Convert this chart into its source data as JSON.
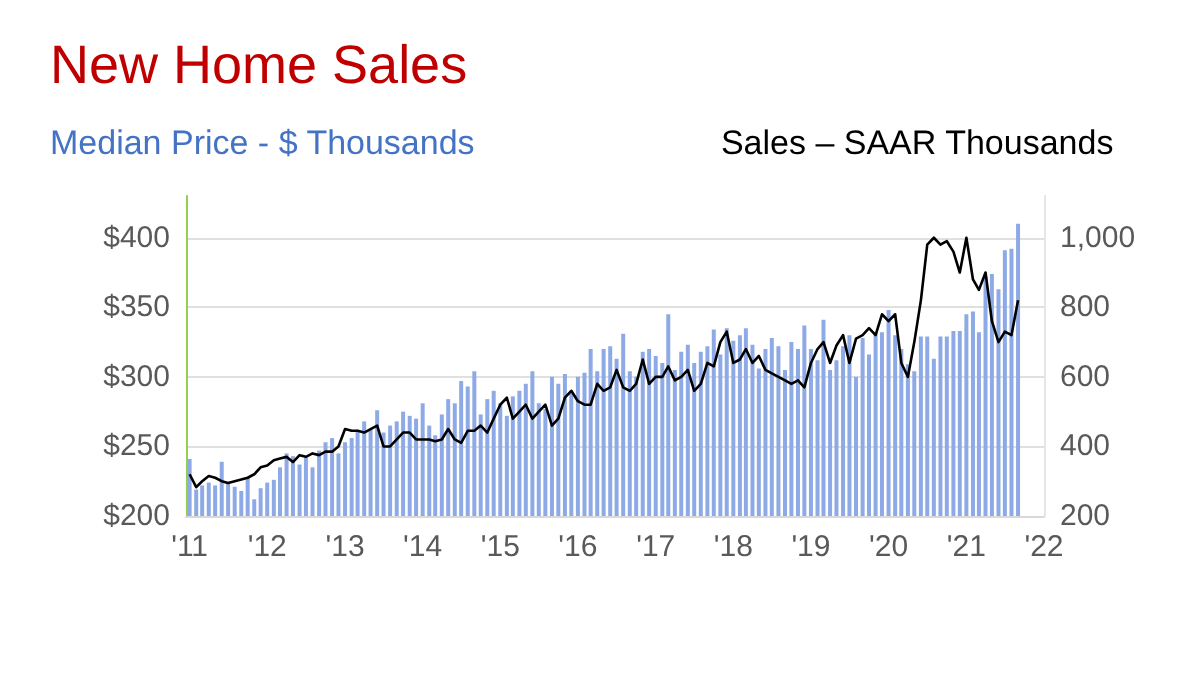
{
  "chart_data": {
    "type": "bar",
    "title": "New Home Sales",
    "ylabel": "Median Price - $ Thousands",
    "y2label": "Sales – SAAR Thousands",
    "x": [
      "2011-01",
      "2011-02",
      "2011-03",
      "2011-04",
      "2011-05",
      "2011-06",
      "2011-07",
      "2011-08",
      "2011-09",
      "2011-10",
      "2011-11",
      "2011-12",
      "2012-01",
      "2012-02",
      "2012-03",
      "2012-04",
      "2012-05",
      "2012-06",
      "2012-07",
      "2012-08",
      "2012-09",
      "2012-10",
      "2012-11",
      "2012-12",
      "2013-01",
      "2013-02",
      "2013-03",
      "2013-04",
      "2013-05",
      "2013-06",
      "2013-07",
      "2013-08",
      "2013-09",
      "2013-10",
      "2013-11",
      "2013-12",
      "2014-01",
      "2014-02",
      "2014-03",
      "2014-04",
      "2014-05",
      "2014-06",
      "2014-07",
      "2014-08",
      "2014-09",
      "2014-10",
      "2014-11",
      "2014-12",
      "2015-01",
      "2015-02",
      "2015-03",
      "2015-04",
      "2015-05",
      "2015-06",
      "2015-07",
      "2015-08",
      "2015-09",
      "2015-10",
      "2015-11",
      "2015-12",
      "2016-01",
      "2016-02",
      "2016-03",
      "2016-04",
      "2016-05",
      "2016-06",
      "2016-07",
      "2016-08",
      "2016-09",
      "2016-10",
      "2016-11",
      "2016-12",
      "2017-01",
      "2017-02",
      "2017-03",
      "2017-04",
      "2017-05",
      "2017-06",
      "2017-07",
      "2017-08",
      "2017-09",
      "2017-10",
      "2017-11",
      "2017-12",
      "2018-01",
      "2018-02",
      "2018-03",
      "2018-04",
      "2018-05",
      "2018-06",
      "2018-07",
      "2018-08",
      "2018-09",
      "2018-10",
      "2018-11",
      "2018-12",
      "2019-01",
      "2019-02",
      "2019-03",
      "2019-04",
      "2019-05",
      "2019-06",
      "2019-07",
      "2019-08",
      "2019-09",
      "2019-10",
      "2019-11",
      "2019-12",
      "2020-01",
      "2020-02",
      "2020-03",
      "2020-04",
      "2020-05",
      "2020-06",
      "2020-07",
      "2020-08",
      "2020-09",
      "2020-10",
      "2020-11",
      "2020-12",
      "2021-01",
      "2021-02",
      "2021-03",
      "2021-04",
      "2021-05",
      "2021-06",
      "2021-07",
      "2021-08",
      "2021-09"
    ],
    "series": [
      {
        "color": "#8eaae6",
        "values": [
          241,
          219,
          222,
          224,
          222,
          239,
          224,
          221,
          218,
          228,
          212,
          220,
          224,
          226,
          235,
          245,
          243,
          237,
          242,
          235,
          247,
          253,
          256,
          245,
          253,
          256,
          262,
          268,
          262,
          276,
          260,
          265,
          268,
          275,
          272,
          270,
          281,
          265,
          258,
          273,
          284,
          281,
          297,
          293,
          304,
          273,
          284,
          290,
          281,
          272,
          286,
          290,
          295,
          304,
          281,
          277,
          300,
          295,
          302,
          288,
          300,
          303,
          320,
          304,
          320,
          322,
          313,
          331,
          304,
          300,
          318,
          320,
          315,
          310,
          345,
          305,
          318,
          323,
          310,
          318,
          322,
          334,
          316,
          335,
          326,
          330,
          335,
          323,
          306,
          320,
          328,
          322,
          305,
          325,
          320,
          337,
          320,
          312,
          341,
          305,
          312,
          322,
          330,
          300,
          328,
          316,
          332,
          332,
          348,
          330,
          320,
          309,
          304,
          329,
          329,
          313,
          329,
          329,
          333,
          333,
          345,
          347,
          332,
          372,
          374,
          363,
          391,
          392,
          410
        ]
      },
      {
        "type": "line",
        "axis": "y2",
        "color": "#000000",
        "values": [
          320,
          283,
          300,
          315,
          310,
          300,
          295,
          300,
          305,
          310,
          320,
          340,
          345,
          360,
          365,
          370,
          355,
          375,
          370,
          380,
          375,
          385,
          385,
          400,
          450,
          445,
          445,
          440,
          450,
          460,
          400,
          400,
          420,
          440,
          440,
          420,
          420,
          420,
          415,
          420,
          450,
          420,
          410,
          445,
          445,
          460,
          440,
          480,
          520,
          540,
          480,
          500,
          520,
          480,
          500,
          520,
          460,
          480,
          540,
          560,
          530,
          520,
          520,
          580,
          560,
          570,
          620,
          570,
          560,
          580,
          650,
          580,
          600,
          600,
          630,
          590,
          600,
          620,
          560,
          580,
          640,
          630,
          700,
          730,
          640,
          650,
          680,
          640,
          660,
          620,
          610,
          600,
          590,
          580,
          590,
          570,
          640,
          680,
          700,
          640,
          690,
          720,
          640,
          710,
          720,
          740,
          720,
          780,
          760,
          780,
          640,
          600,
          700,
          820,
          980,
          1000,
          980,
          990,
          960,
          900,
          1000,
          880,
          850,
          900,
          760,
          700,
          730,
          720,
          820
        ]
      }
    ],
    "ylim": [
      200,
      430
    ],
    "yticks": [
      {
        "value": 200,
        "label": "$200"
      },
      {
        "value": 250,
        "label": "$250"
      },
      {
        "value": 300,
        "label": "$300"
      },
      {
        "value": 350,
        "label": "$350"
      },
      {
        "value": 400,
        "label": "$400"
      }
    ],
    "y2lim": [
      200,
      1120
    ],
    "y2ticks": [
      200,
      400,
      600,
      800,
      {
        "value": 1000,
        "label": "1,000"
      }
    ],
    "xlim": [
      "2010-12-15",
      "2022-01"
    ],
    "xticks": [
      {
        "value": "2011-01",
        "label": "'11"
      },
      {
        "value": "2012-01",
        "label": "'12"
      },
      {
        "value": "2013-01",
        "label": "'13"
      },
      {
        "value": "2014-01",
        "label": "'14"
      },
      {
        "value": "2015-01",
        "label": "'15"
      },
      {
        "value": "2016-01",
        "label": "'16"
      },
      {
        "value": "2017-01",
        "label": "'17"
      },
      {
        "value": "2018-01",
        "label": "'18"
      },
      {
        "value": "2019-01",
        "label": "'19"
      },
      {
        "value": "2020-01",
        "label": "'20"
      },
      {
        "value": "2021-01",
        "label": "'21"
      },
      {
        "value": "2022-01",
        "label": "'22"
      }
    ],
    "grid": "y",
    "marker": "none"
  }
}
